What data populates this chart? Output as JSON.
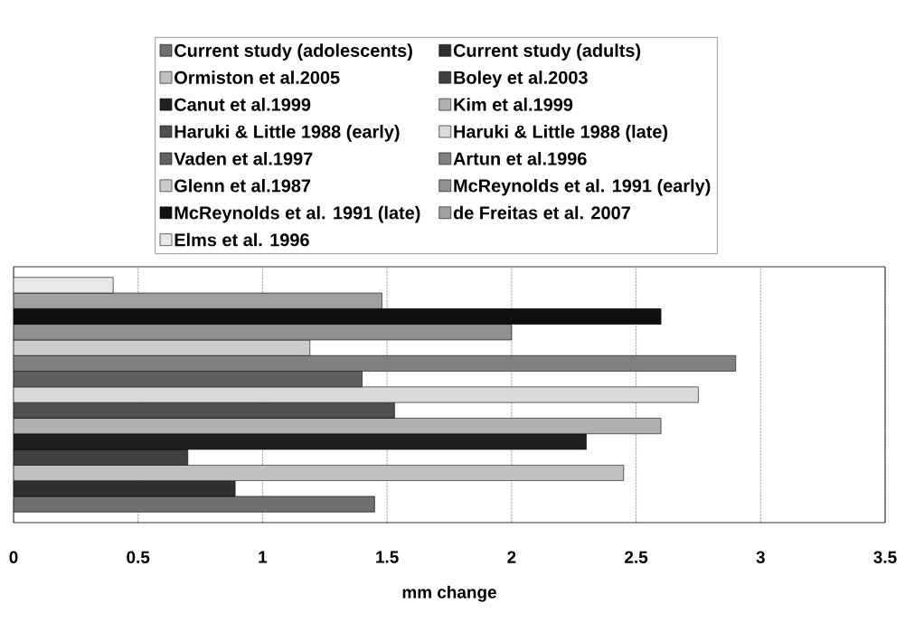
{
  "chart_data": {
    "type": "bar",
    "orientation": "horizontal",
    "xlabel": "mm change",
    "categories": [
      null
    ],
    "xlim": [
      0,
      3.5
    ],
    "xticks": [
      0,
      0.5,
      1,
      1.5,
      2,
      2.5,
      3,
      3.5
    ],
    "grid": "x",
    "legend": "top",
    "series": [
      {
        "name": "Current study (adolescents)",
        "color": "#707070",
        "values": [
          1.45
        ]
      },
      {
        "name": "Current study (adults)",
        "color": "#303030",
        "values": [
          0.89
        ]
      },
      {
        "name": "Ormiston et al.2005",
        "color": "#c0c0c0",
        "values": [
          2.45
        ]
      },
      {
        "name": "Boley et al.2003",
        "color": "#404040",
        "values": [
          0.7
        ]
      },
      {
        "name": "Canut et al.1999",
        "color": "#202020",
        "values": [
          2.3
        ]
      },
      {
        "name": "Kim et al.1999",
        "color": "#b0b0b0",
        "values": [
          2.6
        ]
      },
      {
        "name": "Haruki & Little 1988 (early)",
        "color": "#505050",
        "values": [
          1.53
        ]
      },
      {
        "name": "Haruki & Little 1988 (late)",
        "color": "#dadada",
        "values": [
          2.75
        ]
      },
      {
        "name": "Vaden et al.1997",
        "color": "#606060",
        "values": [
          1.4
        ]
      },
      {
        "name": "Artun et al.1996",
        "color": "#808080",
        "values": [
          2.9
        ]
      },
      {
        "name": "Glenn et al.1987",
        "color": "#cccccc",
        "values": [
          1.19
        ]
      },
      {
        "name": "McReynolds et al. 1991 (early)",
        "color": "#909090",
        "values": [
          2.0
        ]
      },
      {
        "name": "McReynolds et al. 1991 (late)",
        "color": "#101010",
        "values": [
          2.6
        ]
      },
      {
        "name": "de Freitas et al. 2007",
        "color": "#a0a0a0",
        "values": [
          1.48
        ]
      },
      {
        "name": "Elms et al. 1996",
        "color": "#e8e8e8",
        "values": [
          0.4
        ]
      }
    ]
  }
}
